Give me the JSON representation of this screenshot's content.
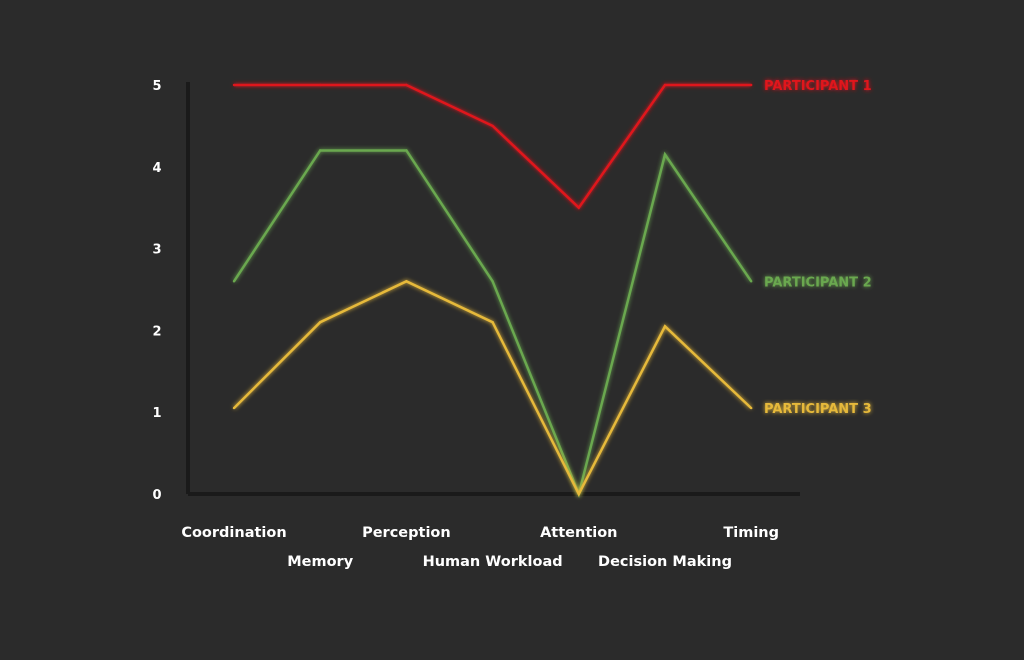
{
  "chart_data": {
    "type": "line",
    "categories": [
      "Coordination",
      "Memory",
      "Perception",
      "Human Workload",
      "Attention",
      "Decision Making",
      "Timing"
    ],
    "series": [
      {
        "name": "PARTICIPANT 1",
        "color": "#e0151c",
        "values": [
          5,
          5,
          5,
          4.5,
          3.5,
          5,
          5
        ]
      },
      {
        "name": "PARTICIPANT 2",
        "color": "#6aa84f",
        "values": [
          2.6,
          4.2,
          4.2,
          2.6,
          0,
          4.15,
          2.6
        ]
      },
      {
        "name": "PARTICIPANT 3",
        "color": "#e6b93a",
        "values": [
          1.05,
          2.1,
          2.6,
          2.1,
          0,
          2.05,
          1.05
        ]
      }
    ],
    "yticks": [
      0,
      1,
      2,
      3,
      4,
      5
    ],
    "ylim": [
      0,
      5
    ],
    "title": "",
    "xlabel": "",
    "ylabel": "",
    "legend_placement": "right, at line ends",
    "grid": false,
    "text_color": "#ffffff",
    "axis_color": "#1a1a1a"
  }
}
